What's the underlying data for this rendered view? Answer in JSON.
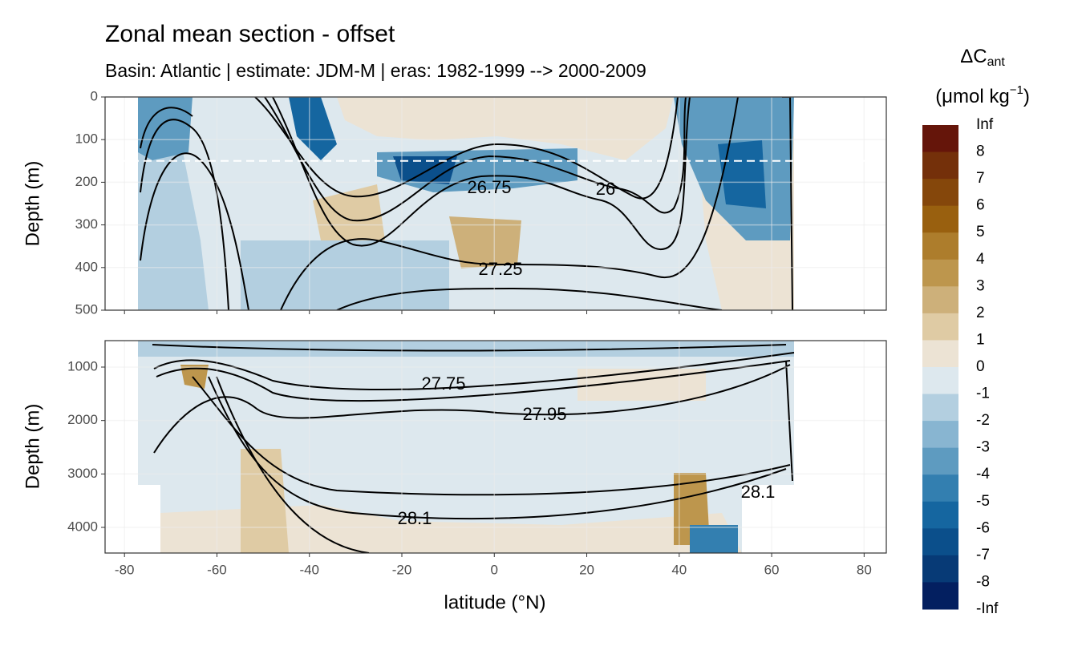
{
  "chart_data": {
    "type": "contour",
    "title": "Zonal mean section - offset",
    "subtitle": "Basin: Atlantic | estimate: JDM-M | eras: 1982-1999 --> 2000-2009",
    "x_label": "latitude (°N)",
    "y_label": "Depth (m)",
    "xlim": [
      -84.2,
      84.8
    ],
    "xticks": [
      -80,
      -60,
      -40,
      -20,
      0,
      20,
      40,
      60,
      80
    ],
    "panels": [
      {
        "ylim": [
          0,
          500
        ],
        "yticks": [
          0,
          100,
          200,
          300,
          400,
          500
        ],
        "hline": 150
      },
      {
        "ylim": [
          505,
          4480
        ],
        "yticks": [
          1000,
          2000,
          3000,
          4000
        ]
      }
    ],
    "contour_labels": [
      "26.75",
      "26",
      "27.25",
      "27.75",
      "27.95",
      "28.1",
      "28.1"
    ],
    "colorbar": {
      "title": "ΔC",
      "title_sub": "ant",
      "unit": "(μmol kg",
      "unit_sup": "−1",
      "unit_end": ")",
      "breaks": [
        "Inf",
        8,
        7,
        6,
        5,
        4,
        3,
        2,
        1,
        0,
        -1,
        -2,
        -3,
        -4,
        -5,
        -6,
        -7,
        -8,
        "-Inf"
      ],
      "colors": [
        "#65150a",
        "#74300a",
        "#85470b",
        "#99600f",
        "#ad7d2c",
        "#bd964d",
        "#cdb07a",
        "#dfcba4",
        "#ece3d4",
        "#dde8ee",
        "#b3cfe0",
        "#88b5d1",
        "#5e9bc0",
        "#337fb0",
        "#1566a0",
        "#0b4f8b",
        "#073a76",
        "#031f60"
      ]
    }
  }
}
